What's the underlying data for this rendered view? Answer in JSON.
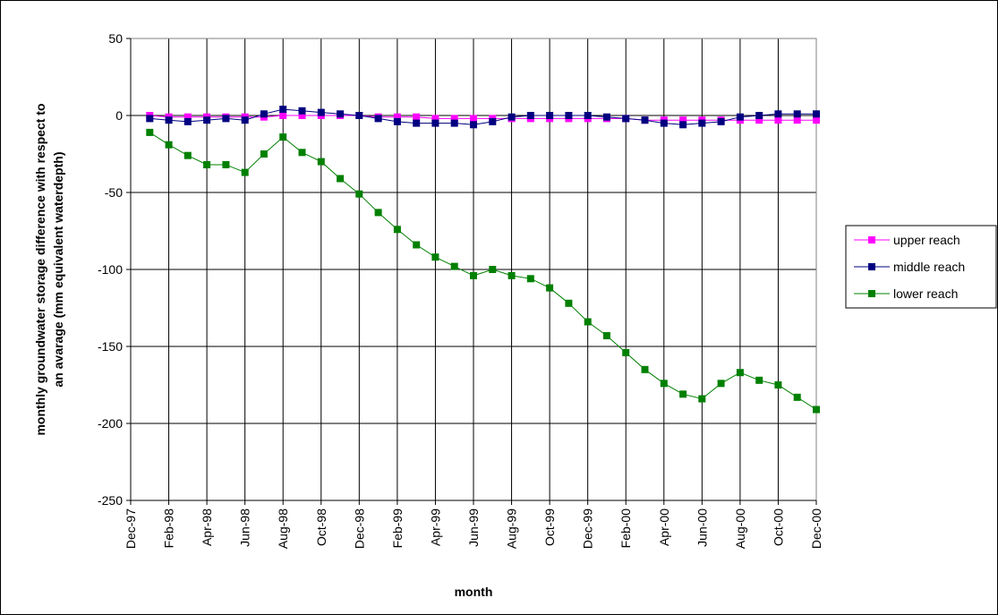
{
  "chart_data": {
    "type": "line",
    "title": "",
    "xlabel": "month",
    "ylabel_line1": "monthly groundwater storage difference with respect to",
    "ylabel_line2": "an avarage (mm equivalent waterdepth)",
    "ylim": [
      -250,
      50
    ],
    "yticks": [
      50,
      0,
      -50,
      -100,
      -150,
      -200,
      -250
    ],
    "xlim": [
      "Dec-97",
      "Dec-00"
    ],
    "xtick_labels": [
      "Dec-97",
      "Feb-98",
      "Apr-98",
      "Jun-98",
      "Aug-98",
      "Oct-98",
      "Dec-98",
      "Feb-99",
      "Apr-99",
      "Jun-99",
      "Aug-99",
      "Oct-99",
      "Dec-99",
      "Feb-00",
      "Apr-00",
      "Jun-00",
      "Aug-00",
      "Oct-00",
      "Dec-00"
    ],
    "grid": "vertical and horizontal",
    "legend_position": "right",
    "x": [
      "Jan-98",
      "Feb-98",
      "Mar-98",
      "Apr-98",
      "May-98",
      "Jun-98",
      "Jul-98",
      "Aug-98",
      "Sep-98",
      "Oct-98",
      "Nov-98",
      "Dec-98",
      "Jan-99",
      "Feb-99",
      "Mar-99",
      "Apr-99",
      "May-99",
      "Jun-99",
      "Jul-99",
      "Aug-99",
      "Sep-99",
      "Oct-99",
      "Nov-99",
      "Dec-99",
      "Jan-00",
      "Feb-00",
      "Mar-00",
      "Apr-00",
      "May-00",
      "Jun-00",
      "Jul-00",
      "Aug-00",
      "Sep-00",
      "Oct-00",
      "Nov-00",
      "Dec-00"
    ],
    "series": [
      {
        "name": "upper reach",
        "color": "#ff00ff",
        "values": [
          0,
          -1,
          -1,
          -1,
          -1,
          -1,
          -1,
          0,
          0,
          0,
          0,
          0,
          -1,
          -1,
          -1,
          -2,
          -2,
          -2,
          -2,
          -2,
          -2,
          -2,
          -2,
          -2,
          -2,
          -2,
          -3,
          -3,
          -3,
          -3,
          -3,
          -3,
          -3,
          -3,
          -3,
          -3
        ]
      },
      {
        "name": "middle reach",
        "color": "#000080",
        "values": [
          -2,
          -3,
          -4,
          -3,
          -2,
          -3,
          1,
          4,
          3,
          2,
          1,
          0,
          -2,
          -4,
          -5,
          -5,
          -5,
          -6,
          -4,
          -1,
          0,
          0,
          0,
          0,
          -1,
          -2,
          -3,
          -5,
          -6,
          -5,
          -4,
          -1,
          0,
          1,
          1,
          1
        ]
      },
      {
        "name": "lower reach",
        "color": "#008000",
        "values": [
          -11,
          -19,
          -26,
          -32,
          -32,
          -37,
          -25,
          -14,
          -24,
          -30,
          -41,
          -51,
          -63,
          -74,
          -84,
          -92,
          -98,
          -104,
          -100,
          -104,
          -106,
          -112,
          -122,
          -134,
          -143,
          -154,
          -165,
          -174,
          -181,
          -184,
          -174,
          -167,
          -172,
          -175,
          -183,
          -191
        ]
      }
    ]
  }
}
